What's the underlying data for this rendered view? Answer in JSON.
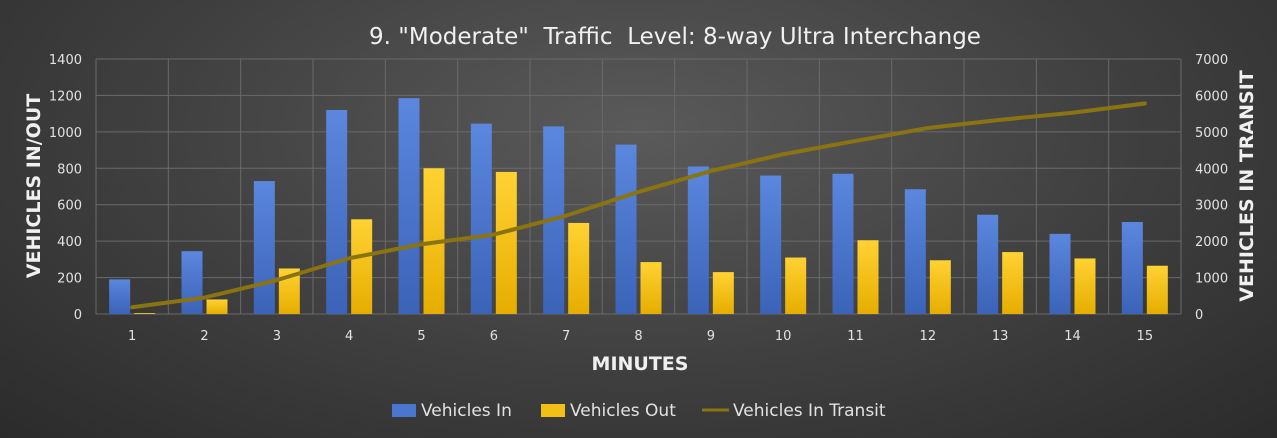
{
  "chart_data": {
    "type": "bar",
    "title": "9. \"Moderate\"  Traffic  Level: 8-way Ultra Interchange",
    "xlabel": "MINUTES",
    "ylabel": "VEHICLES IN/OUT",
    "y2label": "VEHICLES IN TRANSIT",
    "categories": [
      "1",
      "2",
      "3",
      "4",
      "5",
      "6",
      "7",
      "8",
      "9",
      "10",
      "11",
      "12",
      "13",
      "14",
      "15"
    ],
    "ylim": [
      0,
      1400
    ],
    "y2lim": [
      0,
      7000
    ],
    "yticks": [
      "0",
      "200",
      "400",
      "600",
      "800",
      "1000",
      "1200",
      "1400"
    ],
    "y2ticks": [
      "0",
      "1000",
      "2000",
      "3000",
      "4000",
      "5000",
      "6000",
      "7000"
    ],
    "grid": true,
    "legend_position": "bottom",
    "series": [
      {
        "name": "Vehicles In",
        "kind": "bar",
        "axis": "left",
        "color": "#4a76d0",
        "values": [
          190,
          345,
          730,
          1120,
          1185,
          1045,
          1030,
          930,
          810,
          760,
          770,
          685,
          545,
          440,
          505
        ]
      },
      {
        "name": "Vehicles Out",
        "kind": "bar",
        "axis": "left",
        "color": "#f2bf16",
        "values": [
          5,
          80,
          250,
          520,
          800,
          780,
          500,
          285,
          230,
          310,
          405,
          295,
          340,
          305,
          265
        ]
      },
      {
        "name": "Vehicles In Transit",
        "kind": "line",
        "axis": "right",
        "color": "#8a7412",
        "values": [
          185,
          450,
          930,
          1530,
          1915,
          2180,
          2700,
          3350,
          3925,
          4385,
          4750,
          5105,
          5330,
          5525,
          5780
        ]
      }
    ]
  }
}
